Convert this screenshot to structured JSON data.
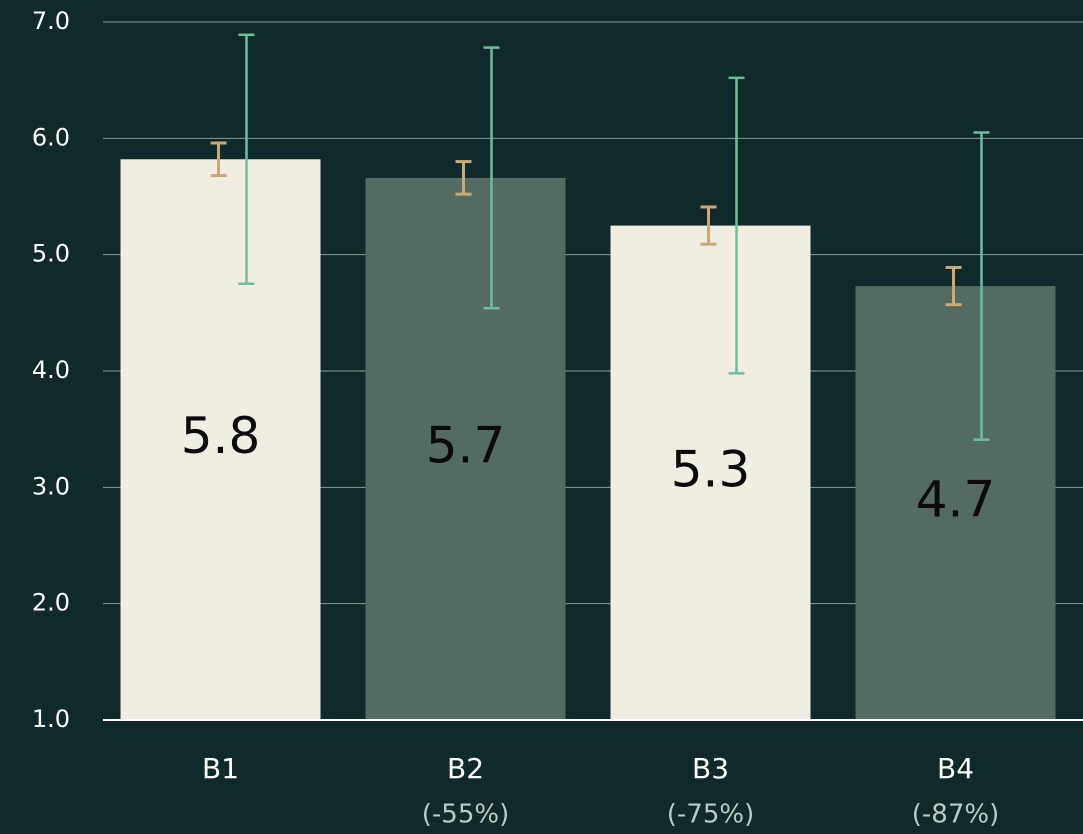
{
  "chart_data": {
    "type": "bar",
    "categories": [
      "B1",
      "B2",
      "B3",
      "B4"
    ],
    "sublabels": [
      null,
      "(-55%)",
      "(-75%)",
      "(-87%)"
    ],
    "values": [
      5.82,
      5.66,
      5.25,
      4.73
    ],
    "value_labels": [
      "5.8",
      "5.7",
      "5.3",
      "4.7"
    ],
    "colors": [
      "#f1ede2",
      "#546b64",
      "#f1ede2",
      "#546b64"
    ],
    "error_bars": [
      {
        "color": "#c9a97a",
        "values": [
          0.14,
          0.14,
          0.16,
          0.16
        ]
      },
      {
        "color": "#6dbf9c",
        "values": [
          1.07,
          1.12,
          1.27,
          1.32
        ]
      }
    ],
    "ylim": [
      1,
      7
    ],
    "yticks": [
      {
        "value": 1,
        "label": "1.0"
      },
      {
        "value": 2,
        "label": "2.0"
      },
      {
        "value": 3,
        "label": "3.0"
      },
      {
        "value": 4,
        "label": "4.0"
      },
      {
        "value": 5,
        "label": "5.0"
      },
      {
        "value": 6,
        "label": "6.0"
      },
      {
        "value": 7,
        "label": "7.0"
      }
    ],
    "grid": true
  }
}
